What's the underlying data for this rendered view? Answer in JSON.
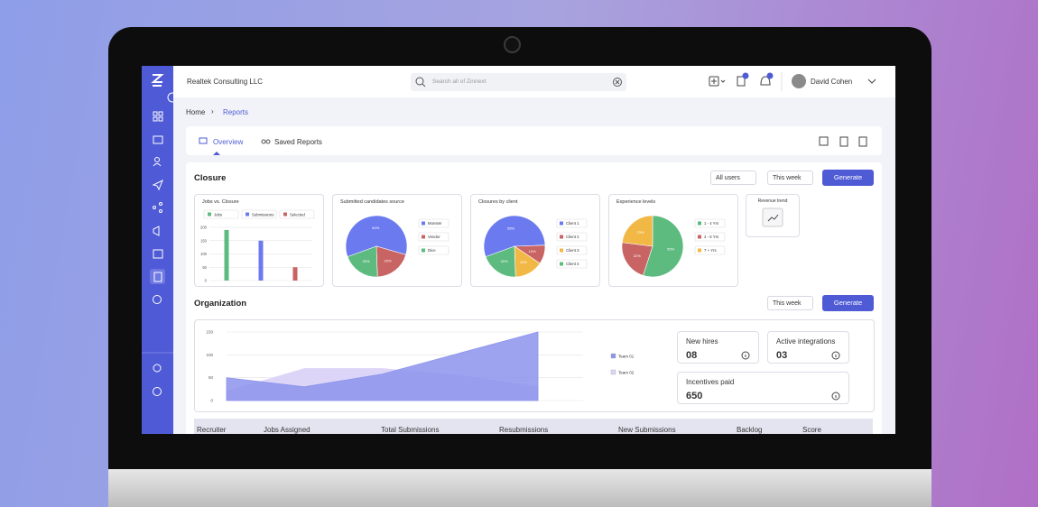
{
  "header": {
    "company": "Realtek Consulting LLC",
    "search_placeholder": "Search all of Zinnext",
    "user": "David Cohen"
  },
  "breadcrumb": {
    "home": "Home",
    "current": "Reports"
  },
  "tabs": [
    "Overview",
    "Saved Reports"
  ],
  "closure": {
    "title": "Closure",
    "filters": [
      "All users",
      "This week"
    ],
    "action": "Generate",
    "revenue_trend": "Revenue trend"
  },
  "organization": {
    "title": "Organization",
    "filter": "This week",
    "action": "Generate",
    "stats": [
      {
        "label": "New hires",
        "value": "08"
      },
      {
        "label": "Active integrations",
        "value": "03"
      },
      {
        "label": "Incentives paid",
        "value": "650"
      }
    ]
  },
  "table": {
    "columns": [
      "Recruiter",
      "Jobs Assigned",
      "Total Submissions",
      "Resubmissions",
      "New Submissions",
      "Backlog",
      "Score"
    ]
  },
  "chart_data": [
    {
      "type": "bar",
      "title": "Jobs vs. Closure",
      "categories": [
        null
      ],
      "series": [
        {
          "name": "Jobs",
          "color": "#5dbb7f",
          "values": [
            190
          ]
        },
        {
          "name": "Submissions",
          "color": "#6b7bef",
          "values": [
            150
          ]
        },
        {
          "name": "Selected",
          "color": "#c96464",
          "values": [
            50
          ]
        }
      ],
      "ylim": [
        0,
        200
      ],
      "yticks": [
        0,
        50,
        100,
        150,
        200
      ],
      "grid": true
    },
    {
      "type": "pie",
      "title": "Submitted candidates source",
      "categories": [
        "Monster",
        "Vendor",
        "Dice"
      ],
      "values": [
        60,
        20,
        20
      ],
      "value_labels": [
        "60%",
        "20%",
        "20%"
      ],
      "colors": [
        "#6b7bef",
        "#c96464",
        "#5dbb7f"
      ]
    },
    {
      "type": "pie",
      "title": "Closures by client",
      "categories": [
        "Client 1",
        "Client 2",
        "Client 3",
        "Client 4"
      ],
      "values": [
        55,
        10,
        15,
        20
      ],
      "value_labels": [
        "55%",
        "10%",
        "15%",
        "20%"
      ],
      "colors": [
        "#6b7bef",
        "#c96464",
        "#f2b845",
        "#5dbb7f"
      ]
    },
    {
      "type": "pie",
      "title": "Experience levels",
      "categories": [
        "1 - 4 Yrs",
        "4 - 6 Yrs",
        "7 + Yrs"
      ],
      "values": [
        55,
        22,
        23
      ],
      "value_labels": [
        "55%",
        "22%",
        "23%"
      ],
      "colors": [
        "#5dbb7f",
        "#c96464",
        "#f2b845"
      ]
    },
    {
      "type": "area",
      "categories": [
        null,
        null,
        null,
        null,
        null
      ],
      "series": [
        {
          "name": "Team 01",
          "color": "#8c93ec",
          "values": [
            50,
            30,
            58,
            104,
            150
          ]
        },
        {
          "name": "Team 02",
          "color": "#ddd5f7",
          "values": [
            20,
            70,
            70,
            55,
            30
          ]
        }
      ],
      "ylim": [
        0,
        150
      ],
      "yticks": [
        0,
        50,
        100,
        150
      ],
      "grid": true
    }
  ]
}
